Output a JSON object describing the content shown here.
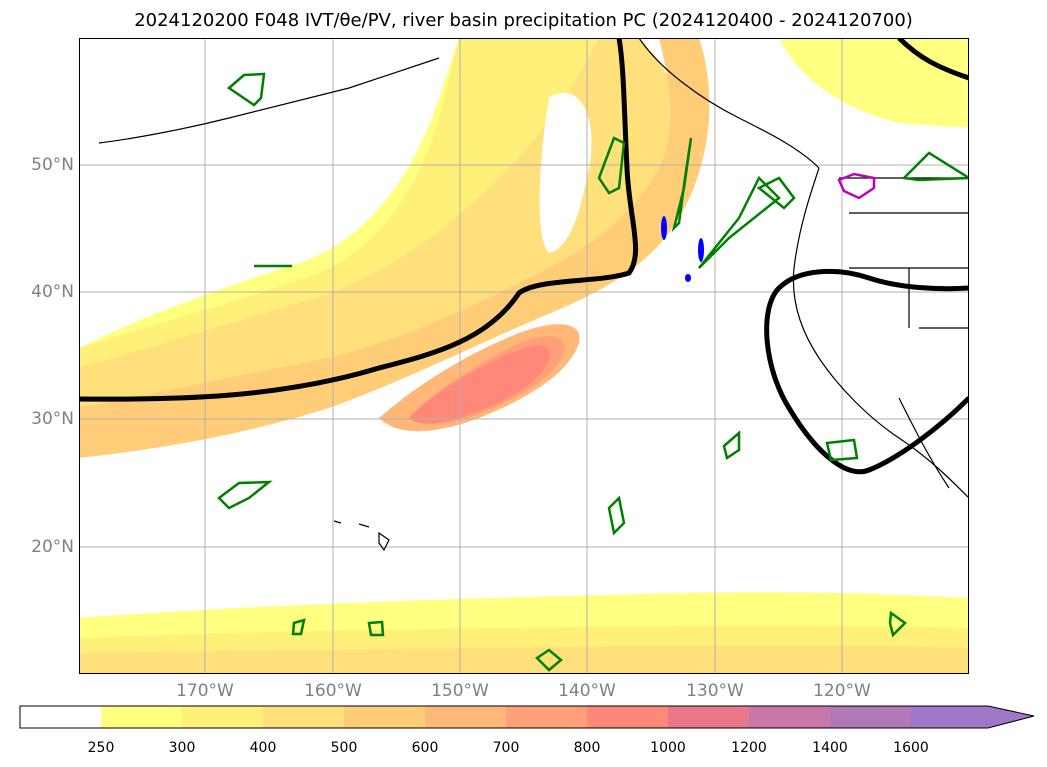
{
  "title": "2024120200 F048 IVT/θe/PV, river basin precipitation PC (2024120400 - 2024120700)",
  "lat_labels": [
    "50°N",
    "40°N",
    "30°N",
    "20°N"
  ],
  "lon_labels": [
    "170°W",
    "160°W",
    "150°W",
    "140°W",
    "130°W",
    "120°W"
  ],
  "colorbar": {
    "ticks": [
      "250",
      "300",
      "400",
      "500",
      "600",
      "700",
      "800",
      "1000",
      "1200",
      "1400",
      "1600"
    ],
    "colors": [
      "#ffffff",
      "#ffff80",
      "#fff07a",
      "#ffe07a",
      "#ffcd78",
      "#ffb878",
      "#ffa078",
      "#ff8878",
      "#e87888",
      "#c878a8",
      "#b078b8",
      "#a078c8"
    ],
    "extend": "max"
  },
  "map_colors": {
    "ocean": "#ffffff",
    "coastline": "#000000",
    "grid": "#b0b0b0",
    "theta_e_contour": "#000000",
    "pv_contour": "#008000",
    "pv_negative": "#0000ff",
    "precip_contour": "#c000c0"
  }
}
